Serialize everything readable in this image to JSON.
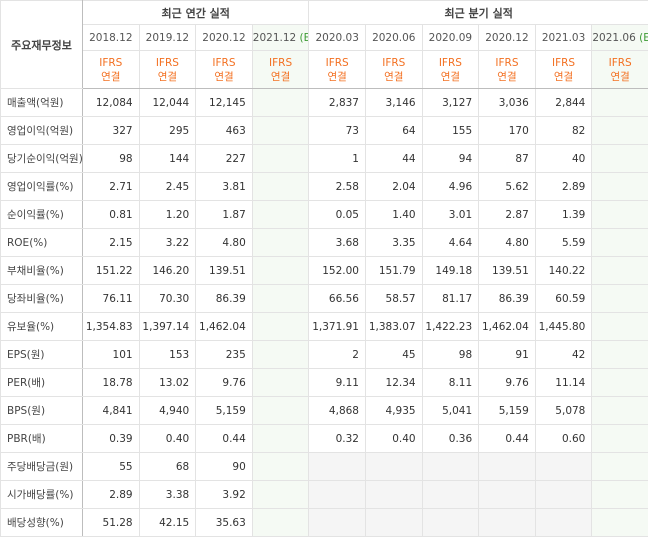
{
  "table": {
    "corner": "주요재무정보",
    "sections": [
      {
        "title": "최근 연간 실적",
        "span": 4
      },
      {
        "title": "최근 분기 실적",
        "span": 6
      }
    ],
    "columns": [
      {
        "period": "2018.12",
        "basis": "IFRS",
        "scope": "연결"
      },
      {
        "period": "2019.12",
        "basis": "IFRS",
        "scope": "연결"
      },
      {
        "period": "2020.12",
        "basis": "IFRS",
        "scope": "연결"
      },
      {
        "period": "2021.12",
        "estimate": "(E)",
        "basis": "IFRS",
        "scope": "연결"
      },
      {
        "period": "2020.03",
        "basis": "IFRS",
        "scope": "연결"
      },
      {
        "period": "2020.06",
        "basis": "IFRS",
        "scope": "연결"
      },
      {
        "period": "2020.09",
        "basis": "IFRS",
        "scope": "연결"
      },
      {
        "period": "2020.12",
        "basis": "IFRS",
        "scope": "연결"
      },
      {
        "period": "2021.03",
        "basis": "IFRS",
        "scope": "연결"
      },
      {
        "period": "2021.06",
        "estimate": "(E)",
        "basis": "IFRS",
        "scope": "연결"
      }
    ],
    "groups": [
      [
        {
          "label": "매출액(억원)",
          "values": [
            "12,084",
            "12,044",
            "12,145",
            null,
            "2,837",
            "3,146",
            "3,127",
            "3,036",
            "2,844",
            null
          ]
        },
        {
          "label": "영업이익(억원)",
          "values": [
            "327",
            "295",
            "463",
            null,
            "73",
            "64",
            "155",
            "170",
            "82",
            null
          ]
        },
        {
          "label": "당기순이익(억원)",
          "values": [
            "98",
            "144",
            "227",
            null,
            "1",
            "44",
            "94",
            "87",
            "40",
            null
          ]
        }
      ],
      [
        {
          "label": "영업이익률(%)",
          "values": [
            "2.71",
            "2.45",
            "3.81",
            null,
            "2.58",
            "2.04",
            "4.96",
            "5.62",
            "2.89",
            null
          ]
        },
        {
          "label": "순이익률(%)",
          "values": [
            "0.81",
            "1.20",
            "1.87",
            null,
            "0.05",
            "1.40",
            "3.01",
            "2.87",
            "1.39",
            null
          ]
        },
        {
          "label": "ROE(%)",
          "values": [
            "2.15",
            "3.22",
            "4.80",
            null,
            "3.68",
            "3.35",
            "4.64",
            "4.80",
            "5.59",
            null
          ]
        }
      ],
      [
        {
          "label": "부채비율(%)",
          "values": [
            "151.22",
            "146.20",
            "139.51",
            null,
            "152.00",
            "151.79",
            "149.18",
            "139.51",
            "140.22",
            null
          ]
        },
        {
          "label": "당좌비율(%)",
          "values": [
            "76.11",
            "70.30",
            "86.39",
            null,
            "66.56",
            "58.57",
            "81.17",
            "86.39",
            "60.59",
            null
          ]
        },
        {
          "label": "유보율(%)",
          "values": [
            "1,354.83",
            "1,397.14",
            "1,462.04",
            null,
            "1,371.91",
            "1,383.07",
            "1,422.23",
            "1,462.04",
            "1,445.80",
            null
          ]
        }
      ],
      [
        {
          "label": "EPS(원)",
          "values": [
            "101",
            "153",
            "235",
            null,
            "2",
            "45",
            "98",
            "91",
            "42",
            null
          ]
        },
        {
          "label": "PER(배)",
          "values": [
            "18.78",
            "13.02",
            "9.76",
            null,
            "9.11",
            "12.34",
            "8.11",
            "9.76",
            "11.14",
            null
          ]
        },
        {
          "label": "BPS(원)",
          "values": [
            "4,841",
            "4,940",
            "5,159",
            null,
            "4,868",
            "4,935",
            "5,041",
            "5,159",
            "5,078",
            null
          ]
        },
        {
          "label": "PBR(배)",
          "values": [
            "0.39",
            "0.40",
            "0.44",
            null,
            "0.32",
            "0.40",
            "0.36",
            "0.44",
            "0.60",
            null
          ]
        }
      ],
      [
        {
          "label": "주당배당금(원)",
          "values": [
            "55",
            "68",
            "90",
            null,
            null,
            null,
            null,
            null,
            null,
            null
          ]
        },
        {
          "label": "시가배당률(%)",
          "values": [
            "2.89",
            "3.38",
            "3.92",
            null,
            null,
            null,
            null,
            null,
            null,
            null
          ]
        },
        {
          "label": "배당성향(%)",
          "values": [
            "51.28",
            "42.15",
            "35.63",
            null,
            null,
            null,
            null,
            null,
            null,
            null
          ]
        }
      ]
    ]
  }
}
